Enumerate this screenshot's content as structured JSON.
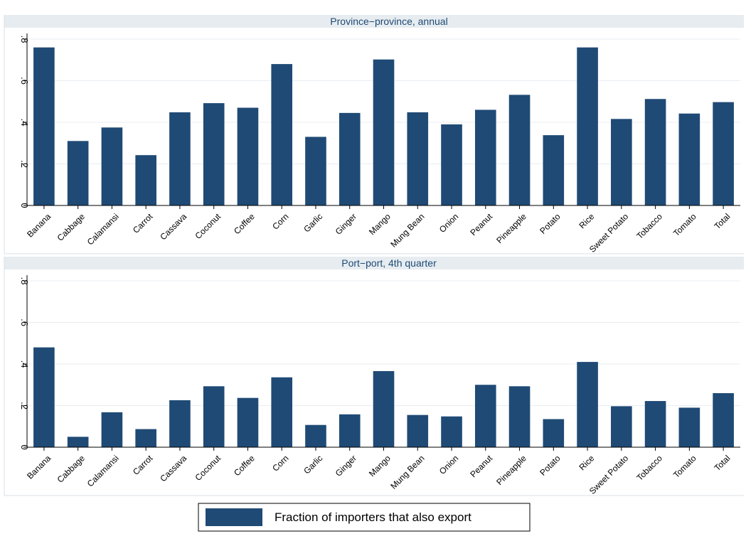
{
  "chart_data": [
    {
      "type": "bar",
      "title": "Province−province, annual",
      "categories": [
        "Banana",
        "Cabbage",
        "Calamansi",
        "Carrot",
        "Cassava",
        "Coconut",
        "Coffee",
        "Corn",
        "Garlic",
        "Ginger",
        "Mango",
        "Mung Bean",
        "Onion",
        "Peanut",
        "Pineapple",
        "Potato",
        "Rice",
        "Sweet Potato",
        "Tobacco",
        "Tomato",
        "Total"
      ],
      "series": [
        {
          "name": "Fraction of importers that also export",
          "values": [
            0.76,
            0.31,
            0.375,
            0.242,
            0.448,
            0.492,
            0.47,
            0.68,
            0.33,
            0.445,
            0.702,
            0.448,
            0.39,
            0.46,
            0.532,
            0.338,
            0.76,
            0.416,
            0.512,
            0.442,
            0.497
          ]
        }
      ],
      "ylim": [
        0,
        0.8
      ],
      "yticks": [
        0,
        0.2,
        0.4,
        0.6,
        0.8
      ],
      "ytick_labels": [
        "0",
        ".2",
        ".4",
        ".6",
        ".8"
      ],
      "grid": true,
      "xlabel": "",
      "ylabel": ""
    },
    {
      "type": "bar",
      "title": "Port−port, 4th quarter",
      "categories": [
        "Banana",
        "Cabbage",
        "Calamansi",
        "Carrot",
        "Cassava",
        "Coconut",
        "Coffee",
        "Corn",
        "Garlic",
        "Ginger",
        "Mango",
        "Mung Bean",
        "Onion",
        "Peanut",
        "Pineapple",
        "Potato",
        "Rice",
        "Sweet Potato",
        "Tobacco",
        "Tomato",
        "Total"
      ],
      "series": [
        {
          "name": "Fraction of importers that also export",
          "values": [
            0.48,
            0.05,
            0.168,
            0.087,
            0.226,
            0.293,
            0.237,
            0.336,
            0.107,
            0.158,
            0.366,
            0.155,
            0.148,
            0.3,
            0.293,
            0.135,
            0.41,
            0.197,
            0.222,
            0.19,
            0.26
          ]
        }
      ],
      "ylim": [
        0,
        0.8
      ],
      "yticks": [
        0,
        0.2,
        0.4,
        0.6,
        0.8
      ],
      "ytick_labels": [
        "0",
        ".2",
        ".4",
        ".6",
        ".8"
      ],
      "grid": true,
      "xlabel": "",
      "ylabel": ""
    }
  ],
  "legend": {
    "label": "Fraction of importers that also export",
    "placement": "bottom-center"
  },
  "colors": {
    "bar": "#1f4a75",
    "panel_title_bg": "#e6ecf0",
    "title_text": "#1f4a75",
    "grid": "#e8eef2",
    "axis": "#000000"
  }
}
